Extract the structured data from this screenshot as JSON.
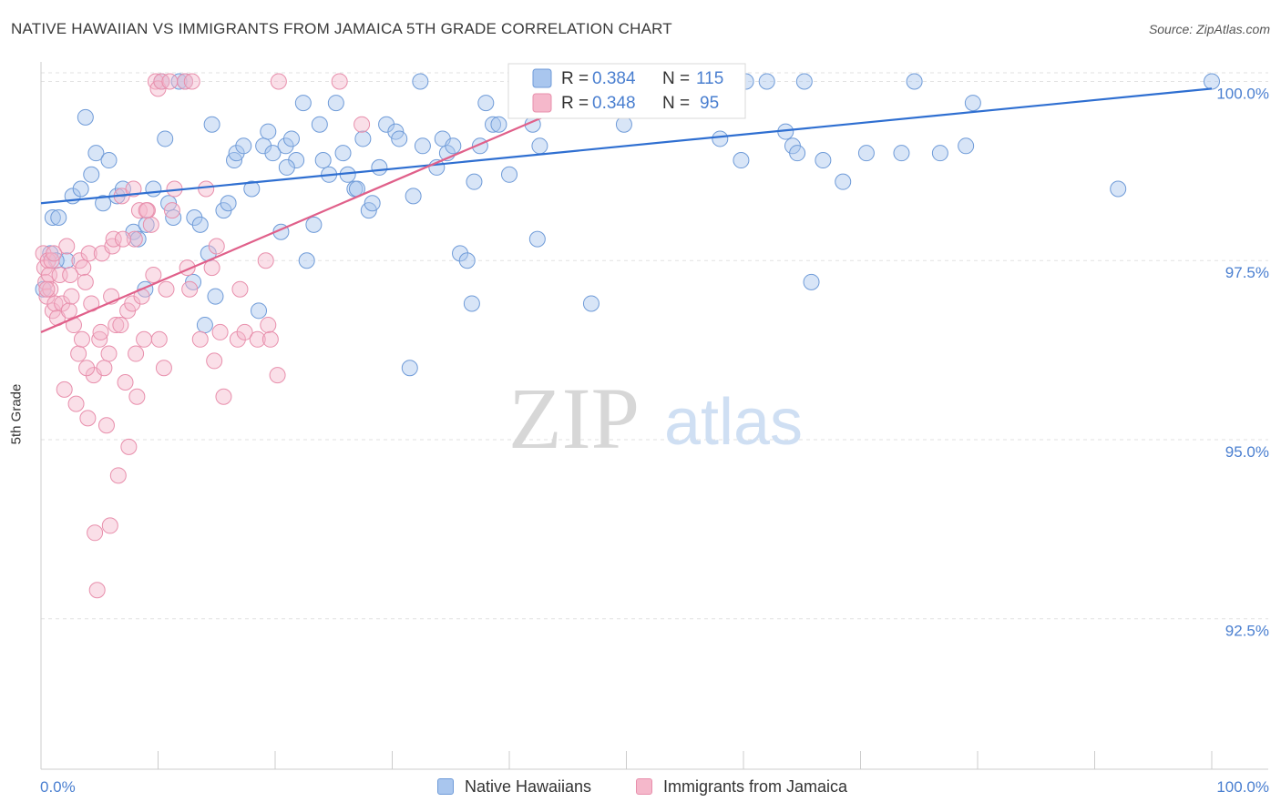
{
  "title": "NATIVE HAWAIIAN VS IMMIGRANTS FROM JAMAICA 5TH GRADE CORRELATION CHART",
  "source": "Source: ZipAtlas.com",
  "watermark": {
    "zip": "ZIP",
    "atlas": "atlas"
  },
  "colors": {
    "blue_fill": "#a9c6ee",
    "blue_stroke": "#6f9bd8",
    "blue_line": "#2f6fd1",
    "pink_fill": "#f5b8cb",
    "pink_stroke": "#e88fac",
    "pink_line": "#e0608a",
    "axis_text": "#4a7fd0",
    "grid": "#e2e2e2"
  },
  "legend": {
    "r_label": "R =",
    "n_label": "N =",
    "rows": [
      {
        "r": "0.384",
        "n": "115",
        "color": "blue"
      },
      {
        "r": "0.348",
        "n": "95",
        "color": "pink"
      }
    ]
  },
  "bottom_legend": [
    "Native Hawaiians",
    "Immigrants from Jamaica"
  ],
  "chart_data": {
    "type": "scatter",
    "title": "NATIVE HAWAIIAN VS IMMIGRANTS FROM JAMAICA 5TH GRADE CORRELATION CHART",
    "xlabel": "",
    "ylabel": "5th Grade",
    "xlim": [
      0,
      100
    ],
    "ylim": [
      90.4,
      100.4
    ],
    "x_tick_labels": [
      "0.0%",
      "100.0%"
    ],
    "y_ticks": [
      {
        "value": 100.0,
        "label": "100.0%"
      },
      {
        "value": 97.5,
        "label": "97.5%"
      },
      {
        "value": 95.0,
        "label": "95.0%"
      },
      {
        "value": 92.5,
        "label": "92.5%"
      }
    ],
    "grid": true,
    "series": [
      {
        "name": "Native Hawaiians",
        "color": "blue",
        "trend": {
          "x": [
            0,
            100
          ],
          "y": [
            98.3,
            99.9
          ]
        },
        "points": [
          [
            0.2,
            97.1
          ],
          [
            0.8,
            97.6
          ],
          [
            1.0,
            98.1
          ],
          [
            1.5,
            98.1
          ],
          [
            2.2,
            97.5
          ],
          [
            2.7,
            98.4
          ],
          [
            3.4,
            98.5
          ],
          [
            3.8,
            99.5
          ],
          [
            4.3,
            98.7
          ],
          [
            4.7,
            99.0
          ],
          [
            5.3,
            98.3
          ],
          [
            5.8,
            98.9
          ],
          [
            6.5,
            98.4
          ],
          [
            7.0,
            98.5
          ],
          [
            7.9,
            97.9
          ],
          [
            8.3,
            97.8
          ],
          [
            8.9,
            97.1
          ],
          [
            9.6,
            98.5
          ],
          [
            10.3,
            100.0
          ],
          [
            10.6,
            99.2
          ],
          [
            10.9,
            98.3
          ],
          [
            11.3,
            98.1
          ],
          [
            11.8,
            100.0
          ],
          [
            12.3,
            100.0
          ],
          [
            13.0,
            97.2
          ],
          [
            13.1,
            98.1
          ],
          [
            14.0,
            96.6
          ],
          [
            14.3,
            97.6
          ],
          [
            14.6,
            99.4
          ],
          [
            14.9,
            97.0
          ],
          [
            15.6,
            98.2
          ],
          [
            16.0,
            98.3
          ],
          [
            16.5,
            98.9
          ],
          [
            16.7,
            99.0
          ],
          [
            17.3,
            99.1
          ],
          [
            18.0,
            98.5
          ],
          [
            18.6,
            96.8
          ],
          [
            19.0,
            99.1
          ],
          [
            19.4,
            99.3
          ],
          [
            19.8,
            99.0
          ],
          [
            20.5,
            97.9
          ],
          [
            20.9,
            99.1
          ],
          [
            21.4,
            99.2
          ],
          [
            21.8,
            98.9
          ],
          [
            22.4,
            99.7
          ],
          [
            22.7,
            97.5
          ],
          [
            23.3,
            98.0
          ],
          [
            23.8,
            99.4
          ],
          [
            24.1,
            98.9
          ],
          [
            24.6,
            98.7
          ],
          [
            25.2,
            99.7
          ],
          [
            25.8,
            99.0
          ],
          [
            26.2,
            98.7
          ],
          [
            26.8,
            98.5
          ],
          [
            27.5,
            99.2
          ],
          [
            28.0,
            98.2
          ],
          [
            28.3,
            98.3
          ],
          [
            28.9,
            98.8
          ],
          [
            29.5,
            99.4
          ],
          [
            30.3,
            99.3
          ],
          [
            30.6,
            99.2
          ],
          [
            31.5,
            96.0
          ],
          [
            31.8,
            98.4
          ],
          [
            32.4,
            100.0
          ],
          [
            32.6,
            99.1
          ],
          [
            33.8,
            98.8
          ],
          [
            34.3,
            99.2
          ],
          [
            34.7,
            99.0
          ],
          [
            35.2,
            99.1
          ],
          [
            35.8,
            97.6
          ],
          [
            36.4,
            97.5
          ],
          [
            36.8,
            96.9
          ],
          [
            37.5,
            99.1
          ],
          [
            38.0,
            99.7
          ],
          [
            38.6,
            99.4
          ],
          [
            39.1,
            99.4
          ],
          [
            40.0,
            98.7
          ],
          [
            41.2,
            100.0
          ],
          [
            42.0,
            99.4
          ],
          [
            42.4,
            97.8
          ],
          [
            42.6,
            99.1
          ],
          [
            43.8,
            100.0
          ],
          [
            45.2,
            100.0
          ],
          [
            47.0,
            96.9
          ],
          [
            49.2,
            100.0
          ],
          [
            49.8,
            99.4
          ],
          [
            51.0,
            100.0
          ],
          [
            53.0,
            100.0
          ],
          [
            55.0,
            100.0
          ],
          [
            57.0,
            100.0
          ],
          [
            58.0,
            99.2
          ],
          [
            59.8,
            98.9
          ],
          [
            60.2,
            100.0
          ],
          [
            62.0,
            100.0
          ],
          [
            63.6,
            99.3
          ],
          [
            64.2,
            99.1
          ],
          [
            64.6,
            99.0
          ],
          [
            65.2,
            100.0
          ],
          [
            65.8,
            97.2
          ],
          [
            66.8,
            98.9
          ],
          [
            68.5,
            98.6
          ],
          [
            70.5,
            99.0
          ],
          [
            73.5,
            99.0
          ],
          [
            74.6,
            100.0
          ],
          [
            76.8,
            99.0
          ],
          [
            79.0,
            99.1
          ],
          [
            79.6,
            99.7
          ],
          [
            92.0,
            98.5
          ],
          [
            100.0,
            100.0
          ],
          [
            1.3,
            97.5
          ],
          [
            9.0,
            98.0
          ],
          [
            13.6,
            98.0
          ],
          [
            21.0,
            98.8
          ],
          [
            27.0,
            98.5
          ],
          [
            37.0,
            98.6
          ]
        ]
      },
      {
        "name": "Immigrants from Jamaica",
        "color": "pink",
        "trend": {
          "x": [
            0,
            50
          ],
          "y": [
            96.5,
            100.0
          ]
        },
        "points": [
          [
            0.2,
            97.6
          ],
          [
            0.3,
            97.4
          ],
          [
            0.4,
            97.2
          ],
          [
            0.5,
            97.0
          ],
          [
            0.6,
            97.5
          ],
          [
            0.7,
            97.3
          ],
          [
            0.8,
            97.1
          ],
          [
            0.9,
            97.5
          ],
          [
            1.0,
            96.8
          ],
          [
            1.2,
            96.9
          ],
          [
            1.4,
            96.7
          ],
          [
            1.6,
            97.3
          ],
          [
            1.8,
            96.9
          ],
          [
            2.0,
            95.7
          ],
          [
            2.2,
            97.7
          ],
          [
            2.4,
            96.8
          ],
          [
            2.6,
            97.0
          ],
          [
            2.8,
            96.6
          ],
          [
            3.0,
            95.5
          ],
          [
            3.2,
            96.2
          ],
          [
            3.3,
            97.5
          ],
          [
            3.5,
            96.4
          ],
          [
            3.6,
            97.4
          ],
          [
            3.8,
            97.2
          ],
          [
            4.0,
            95.3
          ],
          [
            4.1,
            97.6
          ],
          [
            4.3,
            96.9
          ],
          [
            4.5,
            95.9
          ],
          [
            4.6,
            93.7
          ],
          [
            4.8,
            92.9
          ],
          [
            5.0,
            96.4
          ],
          [
            5.2,
            97.6
          ],
          [
            5.4,
            96.0
          ],
          [
            5.6,
            95.2
          ],
          [
            5.8,
            96.2
          ],
          [
            5.9,
            93.8
          ],
          [
            6.1,
            97.7
          ],
          [
            6.2,
            97.8
          ],
          [
            6.4,
            96.6
          ],
          [
            6.6,
            94.5
          ],
          [
            6.8,
            96.6
          ],
          [
            6.9,
            98.4
          ],
          [
            7.2,
            95.8
          ],
          [
            7.4,
            96.8
          ],
          [
            7.5,
            94.9
          ],
          [
            7.8,
            96.9
          ],
          [
            7.9,
            98.5
          ],
          [
            8.0,
            97.8
          ],
          [
            8.2,
            95.6
          ],
          [
            8.4,
            98.2
          ],
          [
            8.6,
            97.0
          ],
          [
            8.8,
            96.4
          ],
          [
            9.1,
            98.2
          ],
          [
            9.4,
            98.0
          ],
          [
            9.6,
            97.3
          ],
          [
            9.8,
            100.0
          ],
          [
            10.0,
            99.9
          ],
          [
            10.1,
            96.4
          ],
          [
            10.3,
            100.0
          ],
          [
            10.5,
            96.0
          ],
          [
            10.7,
            97.1
          ],
          [
            11.0,
            100.0
          ],
          [
            11.2,
            98.2
          ],
          [
            11.4,
            98.5
          ],
          [
            12.3,
            100.0
          ],
          [
            12.5,
            97.4
          ],
          [
            12.7,
            97.1
          ],
          [
            12.9,
            100.0
          ],
          [
            13.6,
            96.4
          ],
          [
            14.1,
            98.5
          ],
          [
            14.6,
            97.4
          ],
          [
            14.8,
            96.1
          ],
          [
            15.0,
            97.7
          ],
          [
            15.3,
            96.5
          ],
          [
            15.6,
            95.6
          ],
          [
            16.8,
            96.4
          ],
          [
            17.0,
            97.1
          ],
          [
            17.4,
            96.5
          ],
          [
            18.5,
            96.4
          ],
          [
            19.2,
            97.5
          ],
          [
            19.4,
            96.6
          ],
          [
            19.6,
            96.4
          ],
          [
            20.2,
            95.9
          ],
          [
            20.3,
            100.0
          ],
          [
            25.5,
            100.0
          ],
          [
            27.4,
            99.4
          ],
          [
            0.5,
            97.1
          ],
          [
            1.1,
            97.6
          ],
          [
            2.5,
            97.3
          ],
          [
            3.9,
            96.0
          ],
          [
            5.1,
            96.5
          ],
          [
            6.0,
            97.0
          ],
          [
            7.0,
            97.8
          ],
          [
            9.0,
            98.2
          ],
          [
            8.1,
            96.2
          ]
        ]
      }
    ]
  }
}
